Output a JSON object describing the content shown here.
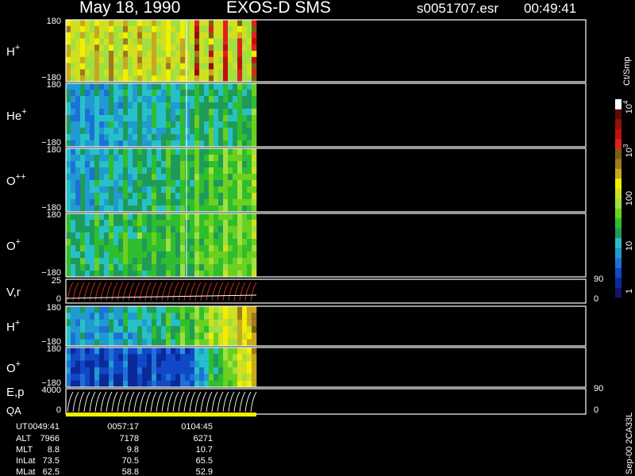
{
  "header": {
    "date": "May 18, 1990",
    "instrument": "EXOS-D SMS",
    "file": "s0051707.esr",
    "time": "00:49:41"
  },
  "panels": [
    {
      "label": "H",
      "superscript": "+",
      "ticks": [
        "180",
        "−180"
      ]
    },
    {
      "label": "He",
      "superscript": "+",
      "ticks": [
        "180",
        "−180"
      ]
    },
    {
      "label": "O",
      "superscript": "++",
      "ticks": [
        "180",
        "−180"
      ]
    },
    {
      "label": "O",
      "superscript": "+",
      "ticks": [
        "180",
        "−180"
      ]
    },
    {
      "label": "V,r",
      "ticks": [
        "25",
        "0"
      ],
      "right_ticks": [
        "90",
        "0"
      ]
    },
    {
      "label": "H",
      "superscript": "+",
      "ticks": [
        "180",
        "−180"
      ]
    },
    {
      "label": "O",
      "superscript": "+",
      "ticks": [
        "180",
        "−180"
      ]
    },
    {
      "label": "E,p",
      "label2": "QA",
      "ticks": [
        "4000",
        "0"
      ],
      "right_ticks": [
        "90",
        "0"
      ]
    }
  ],
  "colorbar": {
    "units": "Ct/Smp",
    "labels": [
      {
        "base": "10",
        "exp": "4"
      },
      {
        "base": "10",
        "exp": "3"
      },
      {
        "base": "100"
      },
      {
        "base": "10"
      },
      {
        "base": "1"
      }
    ]
  },
  "footer": {
    "rows": [
      {
        "name": "UT",
        "values": [
          "0049:41",
          "0057:17",
          "0104:45"
        ]
      },
      {
        "name": "ALT",
        "values": [
          "7966",
          "7178",
          "6271"
        ]
      },
      {
        "name": "MLT",
        "values": [
          "8.8",
          "9.8",
          "10.7"
        ]
      },
      {
        "name": "InLat",
        "values": [
          "73.5",
          "70.5",
          "65.5"
        ]
      },
      {
        "name": "MLat",
        "values": [
          "62.5",
          "58.8",
          "52.9"
        ]
      }
    ],
    "version": "Sep-00 2CA33L"
  }
}
